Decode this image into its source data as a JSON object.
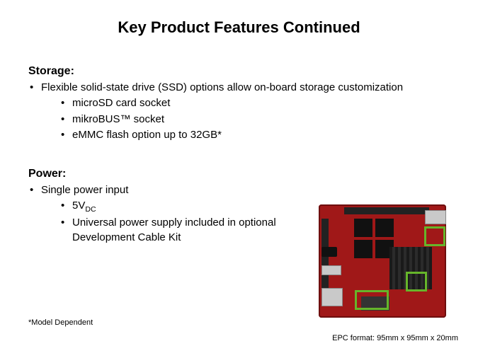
{
  "title": "Key Product Features Continued",
  "storage": {
    "heading": "Storage:",
    "main": "Flexible solid-state drive (SSD) options allow on-board storage customization",
    "items": [
      "microSD card socket",
      "mikroBUS™ socket",
      "eMMC flash option up to 32GB*"
    ]
  },
  "power": {
    "heading": "Power:",
    "main": "Single power input",
    "voltage_base": "5V",
    "voltage_sub": "DC",
    "supply": "Universal power supply included in optional Development Cable Kit"
  },
  "footnote": "*Model Dependent",
  "caption": "EPC format: 95mm x 95mm x 20mm",
  "board": {
    "pcb_color": "#a01818",
    "highlight_color": "#66b52a",
    "dimensions": "95mm x 95mm x 20mm"
  }
}
